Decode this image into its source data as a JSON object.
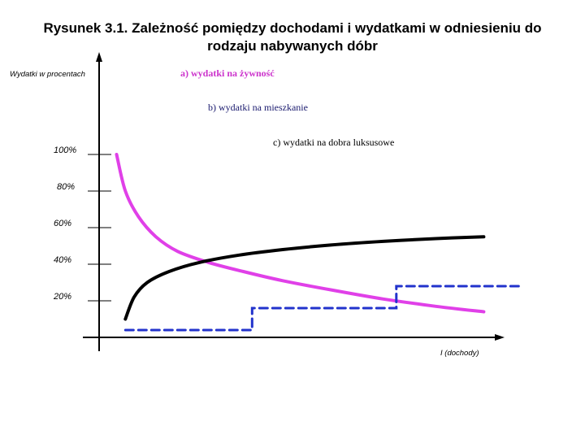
{
  "chart_data": {
    "type": "line",
    "title_line1": "Rysunek 3.1. Zależność pomiędzy dochodami i wydatkami w odniesieniu do",
    "title_line2": "rodzaju nabywanych dóbr",
    "ylabel": "Wydatki w procentach",
    "xlabel": "I (dochody)",
    "y_ticks": [
      "100%",
      "80%",
      "60%",
      "40%",
      "20%"
    ],
    "y_tick_values": [
      100,
      80,
      60,
      40,
      20
    ],
    "ylim": [
      0,
      130
    ],
    "xlim": [
      0,
      10
    ],
    "grid": false,
    "series": [
      {
        "name": "a) wydatki na żywność",
        "color": "#e040e8",
        "style": "solid",
        "x": [
          0.4,
          0.6,
          0.9,
          1.3,
          1.8,
          2.5,
          3.3,
          4.2,
          5.3,
          6.5,
          7.7,
          8.8
        ],
        "y": [
          100,
          80,
          66,
          55,
          47,
          41,
          36,
          31,
          26,
          21,
          17,
          14
        ]
      },
      {
        "name": "b) wydatki na mieszkanie",
        "color": "#000000",
        "style": "solid",
        "x": [
          0.6,
          0.8,
          1.1,
          1.6,
          2.3,
          3.2,
          4.2,
          5.3,
          6.5,
          7.7,
          8.8
        ],
        "y": [
          10,
          22,
          30,
          36,
          41,
          45,
          48,
          50.5,
          52.5,
          54,
          55
        ]
      },
      {
        "name": "c) wydatki na dobra luksusowe",
        "color": "#2233cc",
        "style": "dashed",
        "x": [
          0.6,
          3.5,
          3.5,
          6.8,
          6.8,
          9.6,
          9.6
        ],
        "y": [
          4,
          4,
          16,
          16,
          28,
          28,
          26
        ]
      }
    ]
  }
}
